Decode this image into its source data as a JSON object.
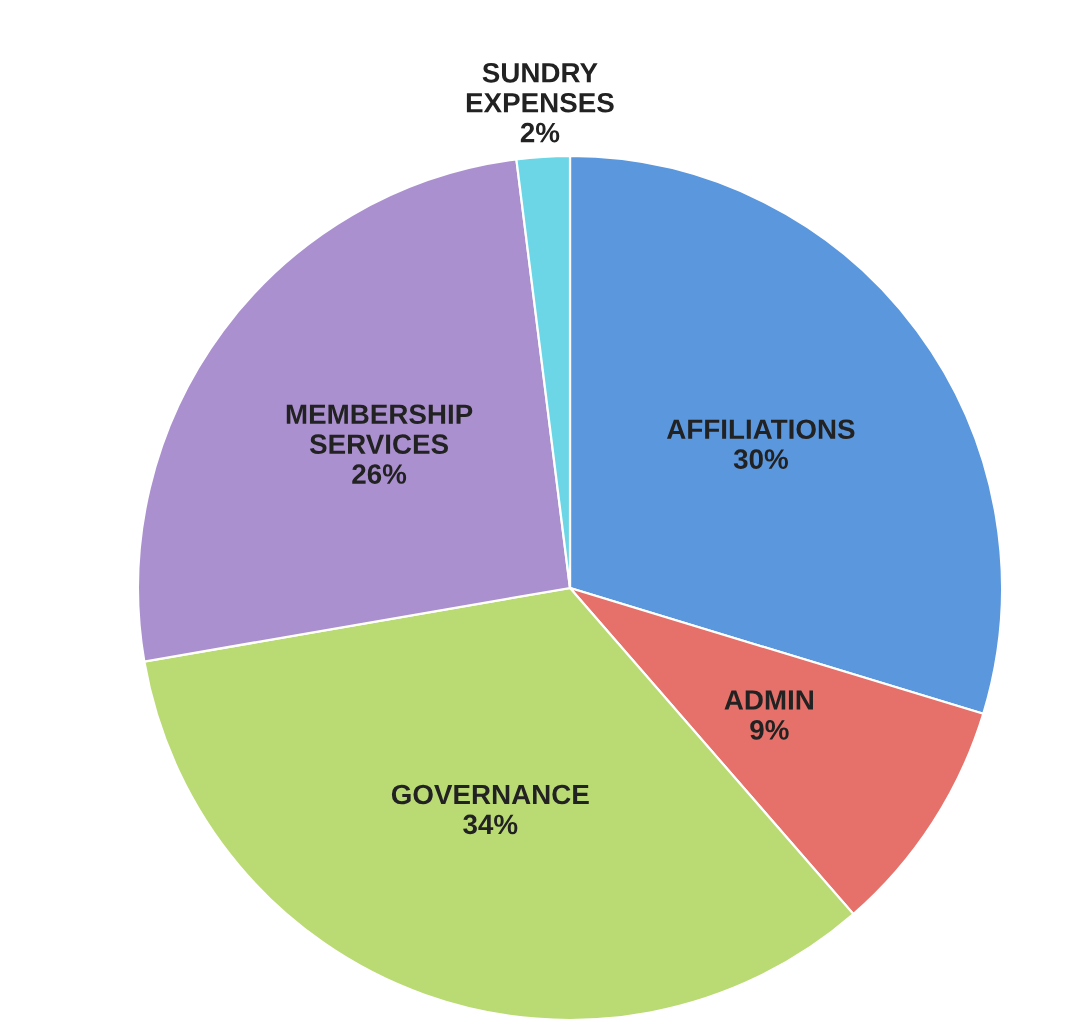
{
  "chart_data": {
    "type": "pie",
    "categories": [
      "AFFILIATIONS",
      "ADMIN",
      "GOVERNANCE",
      "MEMBERSHIP\nSERVICES",
      "SUNDRY\nEXPENSES"
    ],
    "values": [
      30,
      9,
      34,
      26,
      2
    ],
    "value_labels": [
      "30%",
      "9%",
      "34%",
      "26%",
      "2%"
    ],
    "colors": [
      "#5a97dd",
      "#e5716a",
      "#bada74",
      "#ab90cf",
      "#6cd6e6"
    ],
    "legend": false
  }
}
